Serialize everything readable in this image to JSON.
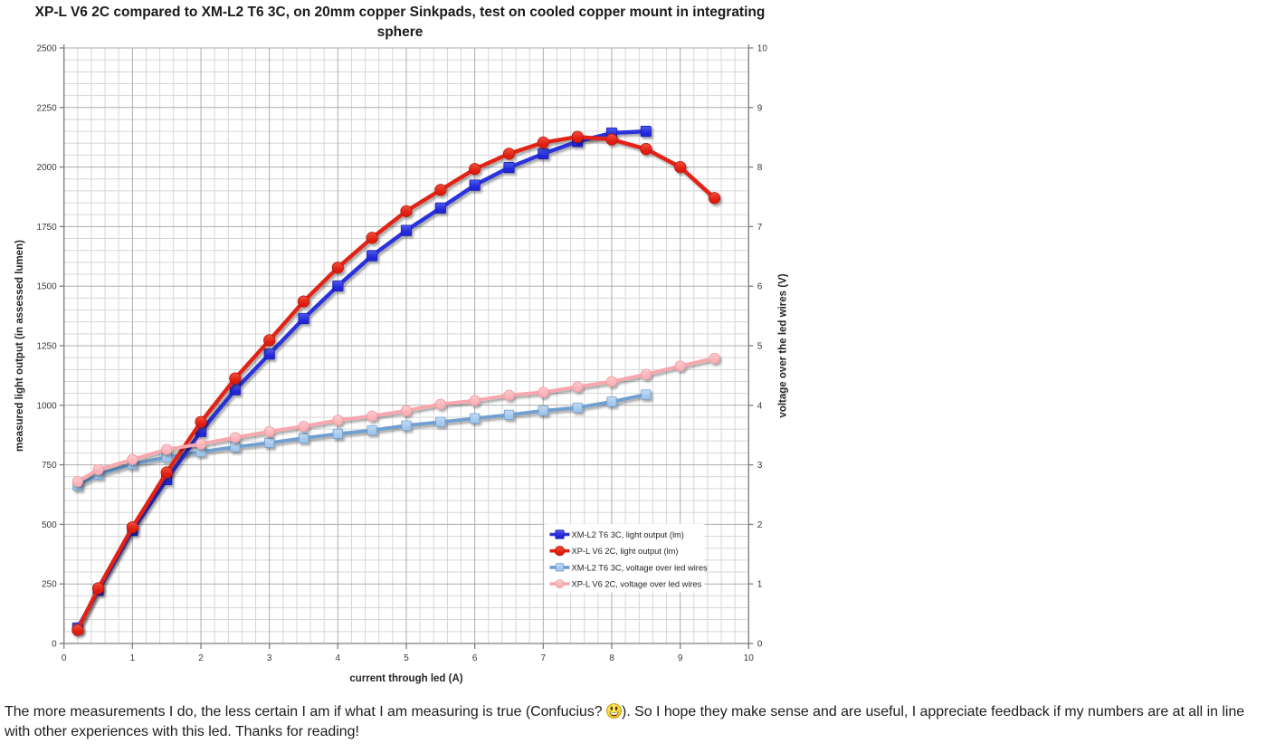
{
  "chart_data": {
    "type": "line",
    "title": "XP-L V6 2C compared to XM-L2 T6 3C, on 20mm copper Sinkpads, test on cooled copper mount in integrating sphere",
    "title_line1": "XP-L V6 2C compared to XM-L2 T6 3C, on 20mm copper Sinkpads, test on cooled copper mount in integrating",
    "title_line2": "sphere",
    "xlabel": "current through led (A)",
    "ylabel_left": "measured light output (in assessed lumen)",
    "ylabel_right": "voltage over the led wires (V)",
    "xlim": [
      0,
      10
    ],
    "x_major_step": 1,
    "x_minor_step": 0.2,
    "ylim_left": [
      0,
      2500
    ],
    "y_left_major_step": 250,
    "y_left_minor_step": 50,
    "ylim_right": [
      0,
      10
    ],
    "y_right_major_step": 1,
    "grid": true,
    "legend_position": "inside-lower-right",
    "series": [
      {
        "name": "XM-L2 T6 3C, light output (lm)",
        "axis": "left",
        "marker": "square",
        "line_color": "#2a31dc",
        "marker_fill": "#2026d8",
        "marker_fill_light": "#4d5cf0",
        "marker_stroke": "#1a1fae",
        "line_width": 4.4,
        "marker_size": 11.4,
        "zorder": 2,
        "x": [
          0.2,
          0.5,
          1,
          1.5,
          2,
          2.5,
          3,
          3.5,
          4,
          4.5,
          5,
          5.5,
          6,
          6.5,
          7,
          7.5,
          8,
          8.5
        ],
        "y": [
          65,
          223,
          475,
          688,
          890,
          1065,
          1215,
          1364,
          1501,
          1628,
          1734,
          1828,
          1924,
          1998,
          2056,
          2107,
          2143,
          2150
        ]
      },
      {
        "name": "XP-L V6 2C, light output (lm)",
        "axis": "left",
        "marker": "circle",
        "line_color": "#e32113",
        "marker_fill": "#df1d0e",
        "marker_fill_light": "#f4503c",
        "marker_stroke": "#b31208",
        "line_width": 4.4,
        "marker_size": 12.4,
        "zorder": 3,
        "x": [
          0.2,
          0.5,
          1,
          1.5,
          2,
          2.5,
          3,
          3.5,
          4,
          4.5,
          5,
          5.5,
          6,
          6.5,
          7,
          7.5,
          8,
          8.5,
          9,
          9.5
        ],
        "y": [
          57,
          232,
          488,
          718,
          930,
          1113,
          1273,
          1436,
          1578,
          1703,
          1815,
          1904,
          1992,
          2056,
          2103,
          2127,
          2116,
          2076,
          2000,
          1870
        ]
      },
      {
        "name": "XM-L2 T6 3C, voltage over led wires",
        "axis": "right",
        "marker": "square",
        "line_color": "#6f9fd0",
        "marker_fill": "#a3c7ea",
        "marker_fill_light": "#c4ddf4",
        "marker_stroke": "#6f9fd0",
        "line_width": 3.8,
        "marker_size": 10.4,
        "zorder": 1,
        "x": [
          0.2,
          0.5,
          1,
          1.5,
          2,
          2.5,
          3,
          3.5,
          4,
          4.5,
          5,
          5.5,
          6,
          6.5,
          7,
          7.5,
          8,
          8.5
        ],
        "y": [
          2.65,
          2.84,
          3.01,
          3.13,
          3.22,
          3.3,
          3.37,
          3.45,
          3.52,
          3.58,
          3.66,
          3.72,
          3.78,
          3.84,
          3.91,
          3.96,
          4.06,
          4.18
        ]
      },
      {
        "name": "XP-L V6 2C, voltage over led wires",
        "axis": "right",
        "marker": "circle",
        "line_color": "#f8a7ae",
        "marker_fill": "#f9b3b9",
        "marker_fill_light": "#fccdd1",
        "marker_stroke": "#f598a1",
        "line_width": 3.8,
        "marker_size": 11.2,
        "zorder": 4,
        "x": [
          0.2,
          0.5,
          1,
          1.5,
          2,
          2.5,
          3,
          3.5,
          4,
          4.5,
          5,
          5.5,
          6,
          6.5,
          7,
          7.5,
          8,
          8.5,
          9,
          9.5
        ],
        "y": [
          2.72,
          2.92,
          3.09,
          3.26,
          3.35,
          3.46,
          3.56,
          3.65,
          3.75,
          3.82,
          3.91,
          4.02,
          4.08,
          4.17,
          4.22,
          4.31,
          4.4,
          4.52,
          4.66,
          4.79
        ]
      }
    ],
    "colors": {
      "grid_minor": "#d6d6d6",
      "grid_major": "#adadad",
      "axis": "#7f7f7f",
      "tick_label": "#3a3a3a",
      "axis_title": "#262626",
      "legend_text": "#1f1f1f",
      "legend_background": "#ffffff"
    }
  },
  "footer": {
    "line1_before_emoji": "The more measurements I do, the less certain I am if what I am measuring is true (Confucius? ",
    "emoji": "grinning-smiley",
    "line1_after_emoji": "). So I hope they make sense and are useful, I appreciate feedback if my numbers are at all in line",
    "line2": "with other experiences with this led. Thanks for reading!"
  }
}
